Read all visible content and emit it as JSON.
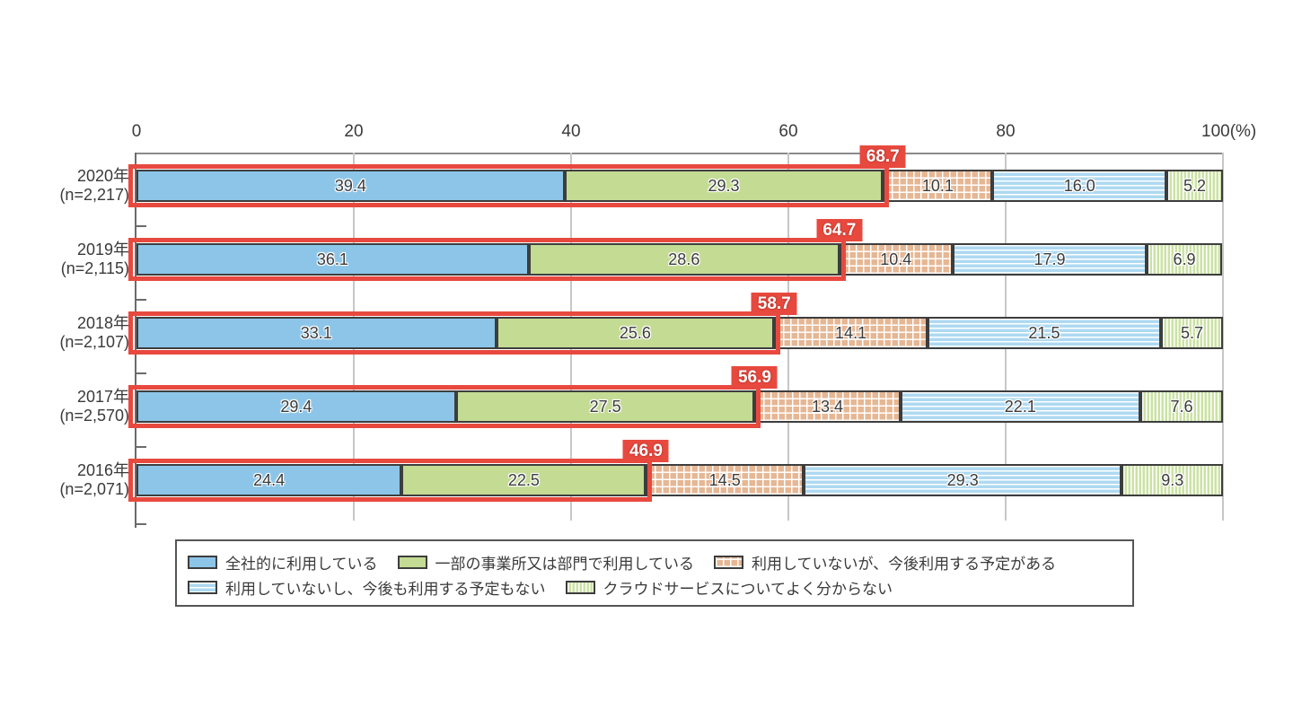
{
  "chart_data": {
    "type": "bar",
    "orientation": "horizontal",
    "stacked": true,
    "unit": "%",
    "xlim": [
      0,
      100
    ],
    "grid": "vertical",
    "x_ticks": [
      "0",
      "20",
      "40",
      "60",
      "80",
      "100(%)"
    ],
    "x_tick_values": [
      0,
      20,
      40,
      60,
      80,
      100
    ],
    "categories": [
      {
        "year": "2020年",
        "n": "(n=2,217)"
      },
      {
        "year": "2019年",
        "n": "(n=2,115)"
      },
      {
        "year": "2018年",
        "n": "(n=2,107)"
      },
      {
        "year": "2017年",
        "n": "(n=2,570)"
      },
      {
        "year": "2016年",
        "n": "(n=2,071)"
      }
    ],
    "series": [
      {
        "name": "全社的に利用している",
        "pattern": "solid-blue",
        "color": "#8cc5e8",
        "values": [
          "39.4",
          "36.1",
          "33.1",
          "29.4",
          "24.4"
        ]
      },
      {
        "name": "一部の事業所又は部門で利用している",
        "pattern": "solid-green",
        "color": "#c3db93",
        "values": [
          "29.3",
          "28.6",
          "25.6",
          "27.5",
          "22.5"
        ]
      },
      {
        "name": "利用していないが、今後利用する予定がある",
        "pattern": "cross-orange",
        "color": "#e6b794",
        "values": [
          "10.1",
          "10.4",
          "14.1",
          "13.4",
          "14.5"
        ]
      },
      {
        "name": "利用していないし、今後も利用する予定もない",
        "pattern": "hstripe-blue",
        "color": "#aed9f1",
        "values": [
          "16.0",
          "17.9",
          "21.5",
          "22.1",
          "29.3"
        ]
      },
      {
        "name": "クラウドサービスについてよく分からない",
        "pattern": "vstripe-green",
        "color": "#cbe2a3",
        "values": [
          "5.2",
          "6.9",
          "5.7",
          "7.6",
          "9.3"
        ]
      }
    ],
    "highlight_totals": [
      "68.7",
      "64.7",
      "58.7",
      "56.9",
      "46.9"
    ],
    "highlight_series_count": 2,
    "highlight_color": "#e8493e",
    "legend_rows": [
      [
        0,
        1,
        2
      ],
      [
        3,
        4
      ]
    ],
    "legend_position": "bottom"
  }
}
